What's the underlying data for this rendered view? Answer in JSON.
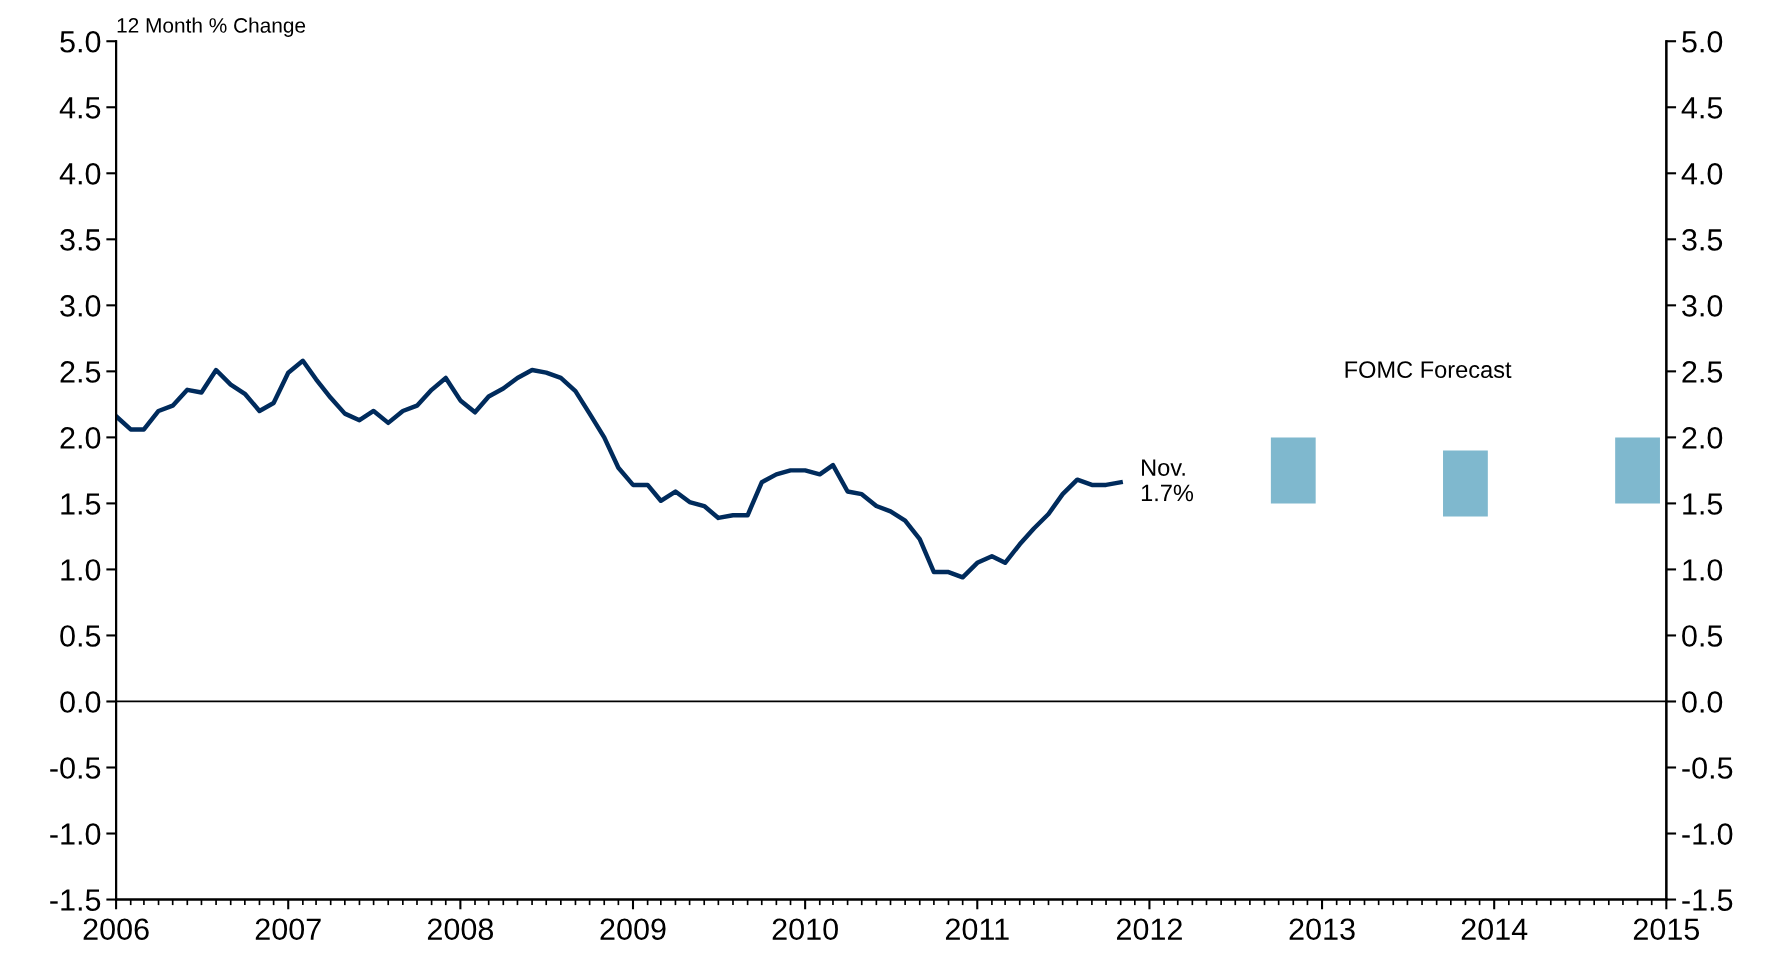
{
  "chart_data": {
    "type": "line",
    "ylabel": "12 Month % Change",
    "x": [
      "2006-01",
      "2006-02",
      "2006-03",
      "2006-04",
      "2006-05",
      "2006-06",
      "2006-07",
      "2006-08",
      "2006-09",
      "2006-10",
      "2006-11",
      "2006-12",
      "2007-01",
      "2007-02",
      "2007-03",
      "2007-04",
      "2007-05",
      "2007-06",
      "2007-07",
      "2007-08",
      "2007-09",
      "2007-10",
      "2007-11",
      "2007-12",
      "2008-01",
      "2008-02",
      "2008-03",
      "2008-04",
      "2008-05",
      "2008-06",
      "2008-07",
      "2008-08",
      "2008-09",
      "2008-10",
      "2008-11",
      "2008-12",
      "2009-01",
      "2009-02",
      "2009-03",
      "2009-04",
      "2009-05",
      "2009-06",
      "2009-07",
      "2009-08",
      "2009-09",
      "2009-10",
      "2009-11",
      "2009-12",
      "2010-01",
      "2010-02",
      "2010-03",
      "2010-04",
      "2010-05",
      "2010-06",
      "2010-07",
      "2010-08",
      "2010-09",
      "2010-10",
      "2010-11",
      "2010-12",
      "2011-01",
      "2011-02",
      "2011-03",
      "2011-04",
      "2011-05",
      "2011-06",
      "2011-07",
      "2011-08",
      "2011-09",
      "2011-10",
      "2011-11"
    ],
    "series": [
      {
        "color": "#002b5c",
        "values": [
          2.16,
          2.06,
          2.06,
          2.2,
          2.24,
          2.36,
          2.34,
          2.51,
          2.4,
          2.33,
          2.2,
          2.26,
          2.49,
          2.58,
          2.44,
          2.3,
          2.18,
          2.13,
          2.2,
          2.11,
          2.2,
          2.24,
          2.36,
          2.45,
          2.28,
          2.19,
          2.31,
          2.37,
          2.45,
          2.51,
          2.49,
          2.45,
          2.35,
          2.18,
          2.0,
          1.77,
          1.64,
          1.64,
          1.52,
          1.59,
          1.51,
          1.48,
          1.39,
          1.41,
          1.41,
          1.66,
          1.72,
          1.75,
          1.75,
          1.72,
          1.79,
          1.59,
          1.57,
          1.48,
          1.44,
          1.37,
          1.23,
          0.98,
          0.98,
          0.94,
          1.05,
          1.1,
          1.05,
          1.19,
          1.31,
          1.42,
          1.57,
          1.68,
          1.64,
          1.64,
          1.66
        ]
      },
      {
        "type": "bar",
        "color": "#7fb8ce",
        "x": [
          "2012-11",
          "2013-11",
          "2014-11"
        ],
        "base": [
          1.5,
          1.4,
          1.5
        ],
        "values": [
          0.5,
          0.5,
          0.5
        ]
      }
    ],
    "annotations": [
      {
        "text": "Nov.\n1.7%",
        "x": "2011-11",
        "y": 1.66
      },
      "FOMC Forecast"
    ],
    "xlim": [
      "2006",
      "2015"
    ],
    "xticks": [
      "2006",
      "2007",
      "2008",
      "2009",
      "2010",
      "2011",
      "2012",
      "2013",
      "2014",
      "2015"
    ],
    "ylim": [
      -1.5,
      5.0
    ],
    "yticks": [
      {
        "value": -1.5,
        "label": "-1.5"
      },
      {
        "value": -1,
        "label": "-1.0"
      },
      {
        "value": -0.5,
        "label": "-0.5"
      },
      {
        "value": 0,
        "label": "0.0"
      },
      {
        "value": 0.5,
        "label": "0.5"
      },
      {
        "value": 1,
        "label": "1.0"
      },
      {
        "value": 1.5,
        "label": "1.5"
      },
      {
        "value": 2,
        "label": "2.0"
      },
      {
        "value": 2.5,
        "label": "2.5"
      },
      {
        "value": 3,
        "label": "3.0"
      },
      {
        "value": 3.5,
        "label": "3.5"
      },
      {
        "value": 4,
        "label": "4.0"
      },
      {
        "value": 4.5,
        "label": "4.5"
      },
      {
        "value": 5,
        "label": "5.0"
      }
    ],
    "y2lim": [
      -1.5,
      5.0
    ],
    "y2ticks": [
      {
        "value": -1.5,
        "label": "-1.5"
      },
      {
        "value": -1,
        "label": "-1.0"
      },
      {
        "value": -0.5,
        "label": "-0.5"
      },
      {
        "value": 0,
        "label": "0.0"
      },
      {
        "value": 0.5,
        "label": "0.5"
      },
      {
        "value": 1,
        "label": "1.0"
      },
      {
        "value": 1.5,
        "label": "1.5"
      },
      {
        "value": 2,
        "label": "2.0"
      },
      {
        "value": 2.5,
        "label": "2.5"
      },
      {
        "value": 3,
        "label": "3.0"
      },
      {
        "value": 3.5,
        "label": "3.5"
      },
      {
        "value": 4,
        "label": "4.0"
      },
      {
        "value": 4.5,
        "label": "4.5"
      },
      {
        "value": 5,
        "label": "5.0"
      }
    ],
    "ref_lines": [
      {
        "axis": "y",
        "value": 0,
        "color": "#000000"
      }
    ],
    "grid": false,
    "legend": false
  }
}
